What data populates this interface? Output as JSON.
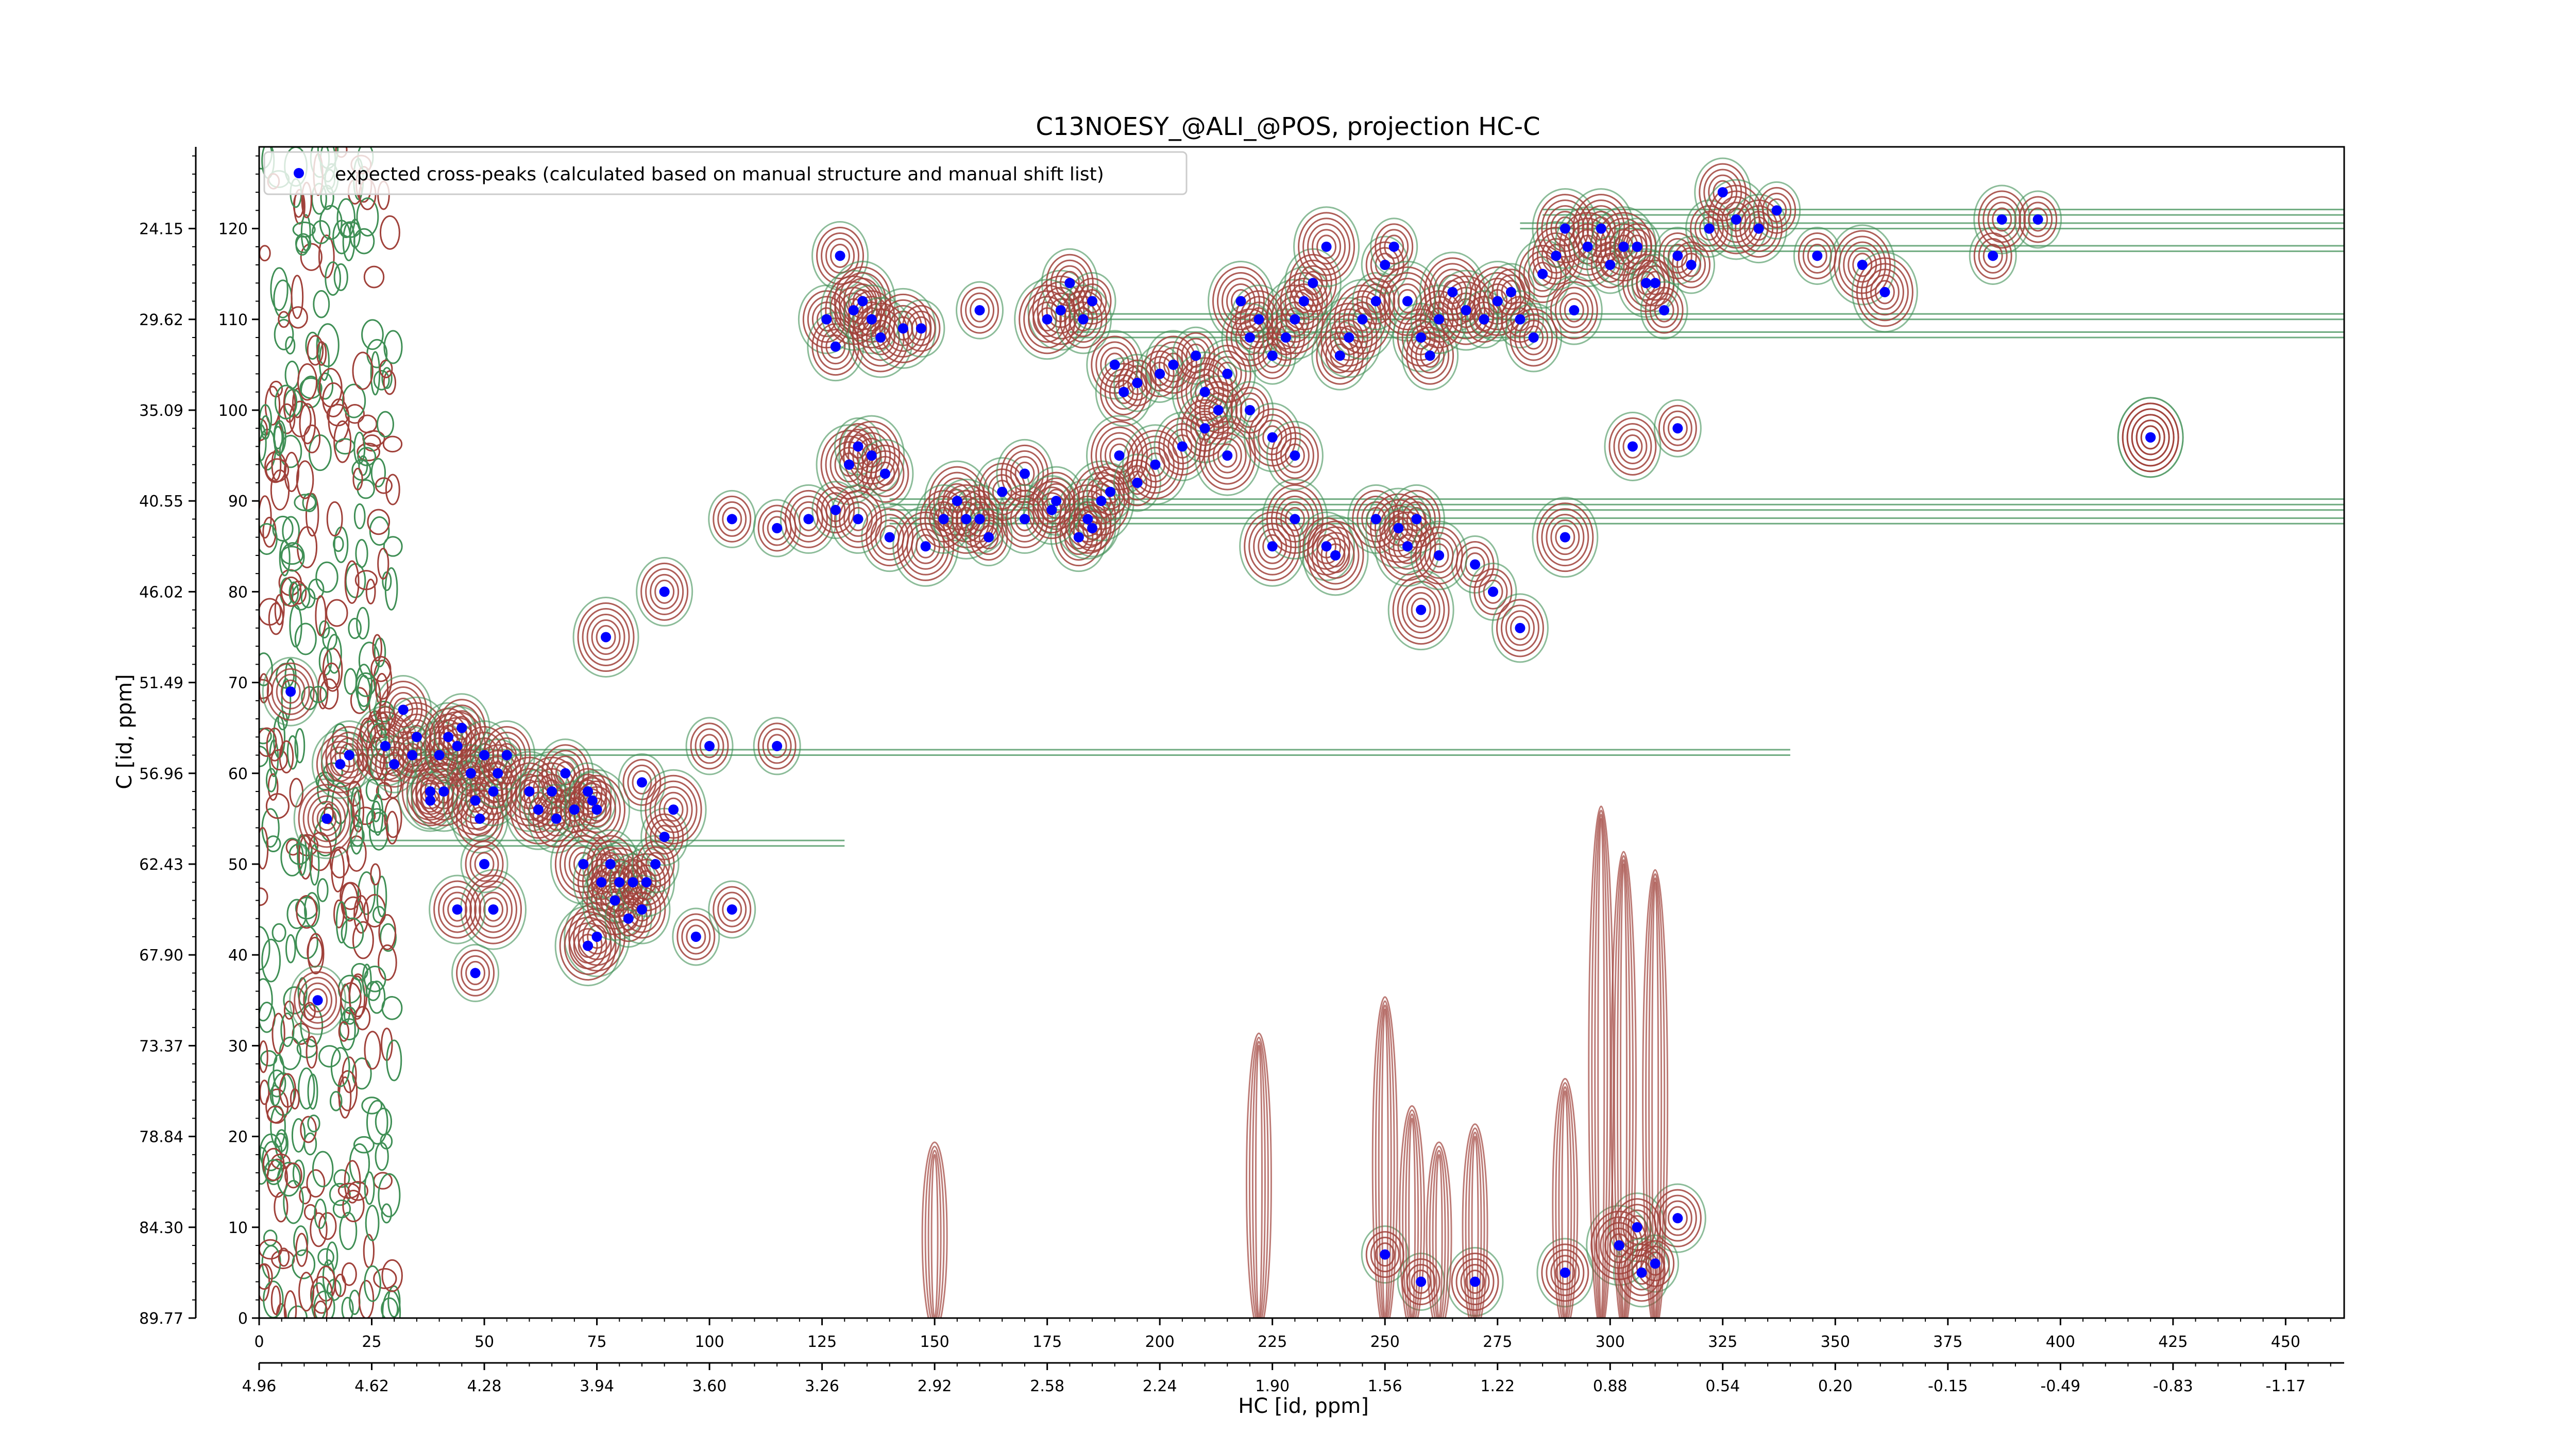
{
  "chart_data": {
    "type": "scatter",
    "title": "C13NOESY_@ALI_@POS, projection HC-C",
    "xlabel": "HC [id, ppm]",
    "ylabel": "C [id, ppm]",
    "xlim": [
      0,
      463
    ],
    "ylim": [
      0,
      129
    ],
    "x_ticks_top": [
      "0",
      "25",
      "50",
      "75",
      "100",
      "125",
      "150",
      "175",
      "200",
      "225",
      "250",
      "275",
      "300",
      "325",
      "350",
      "375",
      "400",
      "425",
      "450"
    ],
    "x_ticks_bottom": [
      "4.96",
      "4.62",
      "4.28",
      "3.94",
      "3.60",
      "3.26",
      "2.92",
      "2.58",
      "2.24",
      "1.90",
      "1.56",
      "1.22",
      "0.88",
      "0.54",
      "0.20",
      "-0.15",
      "-0.49",
      "-0.83",
      "-1.17"
    ],
    "y_ticks_right": [
      "0",
      "10",
      "20",
      "30",
      "40",
      "50",
      "60",
      "70",
      "80",
      "90",
      "100",
      "110",
      "120"
    ],
    "y_ticks_left": [
      "89.77",
      "84.30",
      "78.84",
      "73.37",
      "67.90",
      "62.43",
      "56.96",
      "51.49",
      "46.02",
      "40.55",
      "35.09",
      "29.62",
      "24.15"
    ],
    "legend": {
      "position": "top-left",
      "label": "expected cross-peaks (calculated based on manual structure and manual shift list)"
    },
    "colors": {
      "marker": "#0000ff",
      "contour_positive": "#a0413a",
      "contour_negative": "#3f8f55"
    },
    "series": [
      {
        "name": "expected cross-peaks (calculated based on manual structure and manual shift list)",
        "points": [
          [
            7,
            69
          ],
          [
            15,
            55
          ],
          [
            18,
            61
          ],
          [
            20,
            62
          ],
          [
            13,
            35
          ],
          [
            28,
            63
          ],
          [
            30,
            61
          ],
          [
            32,
            67
          ],
          [
            35,
            64
          ],
          [
            34,
            62
          ],
          [
            38,
            58
          ],
          [
            38,
            57
          ],
          [
            40,
            62
          ],
          [
            42,
            64
          ],
          [
            41,
            58
          ],
          [
            44,
            63
          ],
          [
            45,
            65
          ],
          [
            47,
            60
          ],
          [
            48,
            57
          ],
          [
            49,
            55
          ],
          [
            50,
            62
          ],
          [
            52,
            58
          ],
          [
            52,
            45
          ],
          [
            53,
            60
          ],
          [
            55,
            62
          ],
          [
            44,
            45
          ],
          [
            50,
            50
          ],
          [
            48,
            38
          ],
          [
            60,
            58
          ],
          [
            62,
            56
          ],
          [
            65,
            58
          ],
          [
            66,
            55
          ],
          [
            68,
            60
          ],
          [
            70,
            56
          ],
          [
            72,
            50
          ],
          [
            73,
            58
          ],
          [
            74,
            57
          ],
          [
            75,
            56
          ],
          [
            76,
            48
          ],
          [
            78,
            50
          ],
          [
            75,
            42
          ],
          [
            73,
            41
          ],
          [
            79,
            46
          ],
          [
            80,
            48
          ],
          [
            82,
            44
          ],
          [
            83,
            48
          ],
          [
            85,
            45
          ],
          [
            86,
            48
          ],
          [
            88,
            50
          ],
          [
            85,
            59
          ],
          [
            90,
            53
          ],
          [
            92,
            56
          ],
          [
            97,
            42
          ],
          [
            100,
            63
          ],
          [
            105,
            45
          ],
          [
            115,
            63
          ],
          [
            129,
            117
          ],
          [
            126,
            110
          ],
          [
            128,
            107
          ],
          [
            132,
            111
          ],
          [
            131,
            94
          ],
          [
            134,
            112
          ],
          [
            136,
            110
          ],
          [
            138,
            108
          ],
          [
            143,
            109
          ],
          [
            147,
            109
          ],
          [
            160,
            111
          ],
          [
            178,
            111
          ],
          [
            180,
            114
          ],
          [
            175,
            110
          ],
          [
            183,
            110
          ],
          [
            185,
            112
          ],
          [
            190,
            105
          ],
          [
            192,
            102
          ],
          [
            195,
            103
          ],
          [
            200,
            104
          ],
          [
            203,
            105
          ],
          [
            208,
            106
          ],
          [
            210,
            102
          ],
          [
            213,
            100
          ],
          [
            215,
            104
          ],
          [
            218,
            112
          ],
          [
            220,
            108
          ],
          [
            222,
            110
          ],
          [
            225,
            106
          ],
          [
            228,
            108
          ],
          [
            230,
            110
          ],
          [
            232,
            112
          ],
          [
            234,
            114
          ],
          [
            237,
            118
          ],
          [
            240,
            106
          ],
          [
            242,
            108
          ],
          [
            245,
            110
          ],
          [
            248,
            112
          ],
          [
            250,
            116
          ],
          [
            252,
            118
          ],
          [
            255,
            112
          ],
          [
            258,
            108
          ],
          [
            260,
            106
          ],
          [
            262,
            110
          ],
          [
            265,
            113
          ],
          [
            268,
            111
          ],
          [
            272,
            110
          ],
          [
            275,
            112
          ],
          [
            278,
            113
          ],
          [
            280,
            110
          ],
          [
            283,
            108
          ],
          [
            285,
            115
          ],
          [
            288,
            117
          ],
          [
            290,
            120
          ],
          [
            292,
            111
          ],
          [
            295,
            118
          ],
          [
            298,
            120
          ],
          [
            300,
            116
          ],
          [
            303,
            118
          ],
          [
            306,
            118
          ],
          [
            308,
            114
          ],
          [
            310,
            114
          ],
          [
            312,
            111
          ],
          [
            315,
            117
          ],
          [
            318,
            116
          ],
          [
            322,
            120
          ],
          [
            325,
            124
          ],
          [
            328,
            121
          ],
          [
            333,
            120
          ],
          [
            337,
            122
          ],
          [
            346,
            117
          ],
          [
            356,
            116
          ],
          [
            361,
            113
          ],
          [
            385,
            117
          ],
          [
            387,
            121
          ],
          [
            395,
            121
          ],
          [
            420,
            97
          ],
          [
            420,
            97
          ],
          [
            133,
            96
          ],
          [
            136,
            95
          ],
          [
            139,
            93
          ],
          [
            140,
            86
          ],
          [
            155,
            90
          ],
          [
            160,
            88
          ],
          [
            165,
            91
          ],
          [
            170,
            93
          ],
          [
            177,
            90
          ],
          [
            182,
            86
          ],
          [
            184,
            88
          ],
          [
            187,
            90
          ],
          [
            189,
            91
          ],
          [
            191,
            95
          ],
          [
            195,
            92
          ],
          [
            199,
            94
          ],
          [
            205,
            96
          ],
          [
            210,
            98
          ],
          [
            215,
            95
          ],
          [
            220,
            100
          ],
          [
            225,
            97
          ],
          [
            230,
            95
          ],
          [
            248,
            88
          ],
          [
            253,
            87
          ],
          [
            257,
            88
          ],
          [
            258,
            78
          ],
          [
            270,
            83
          ],
          [
            274,
            80
          ],
          [
            280,
            76
          ],
          [
            290,
            86
          ],
          [
            305,
            96
          ],
          [
            315,
            98
          ],
          [
            306,
            10
          ],
          [
            315,
            11
          ],
          [
            250,
            7
          ],
          [
            258,
            4
          ],
          [
            270,
            4
          ],
          [
            290,
            5
          ],
          [
            302,
            8
          ],
          [
            307,
            5
          ],
          [
            310,
            6
          ],
          [
            77,
            75
          ],
          [
            90,
            80
          ],
          [
            105,
            88
          ],
          [
            115,
            87
          ],
          [
            122,
            88
          ],
          [
            128,
            89
          ],
          [
            133,
            88
          ],
          [
            148,
            85
          ],
          [
            152,
            88
          ],
          [
            157,
            88
          ],
          [
            162,
            86
          ],
          [
            170,
            88
          ],
          [
            176,
            89
          ],
          [
            185,
            87
          ],
          [
            225,
            85
          ],
          [
            230,
            88
          ],
          [
            237,
            85
          ],
          [
            239,
            84
          ],
          [
            255,
            85
          ],
          [
            262,
            84
          ]
        ]
      }
    ]
  }
}
